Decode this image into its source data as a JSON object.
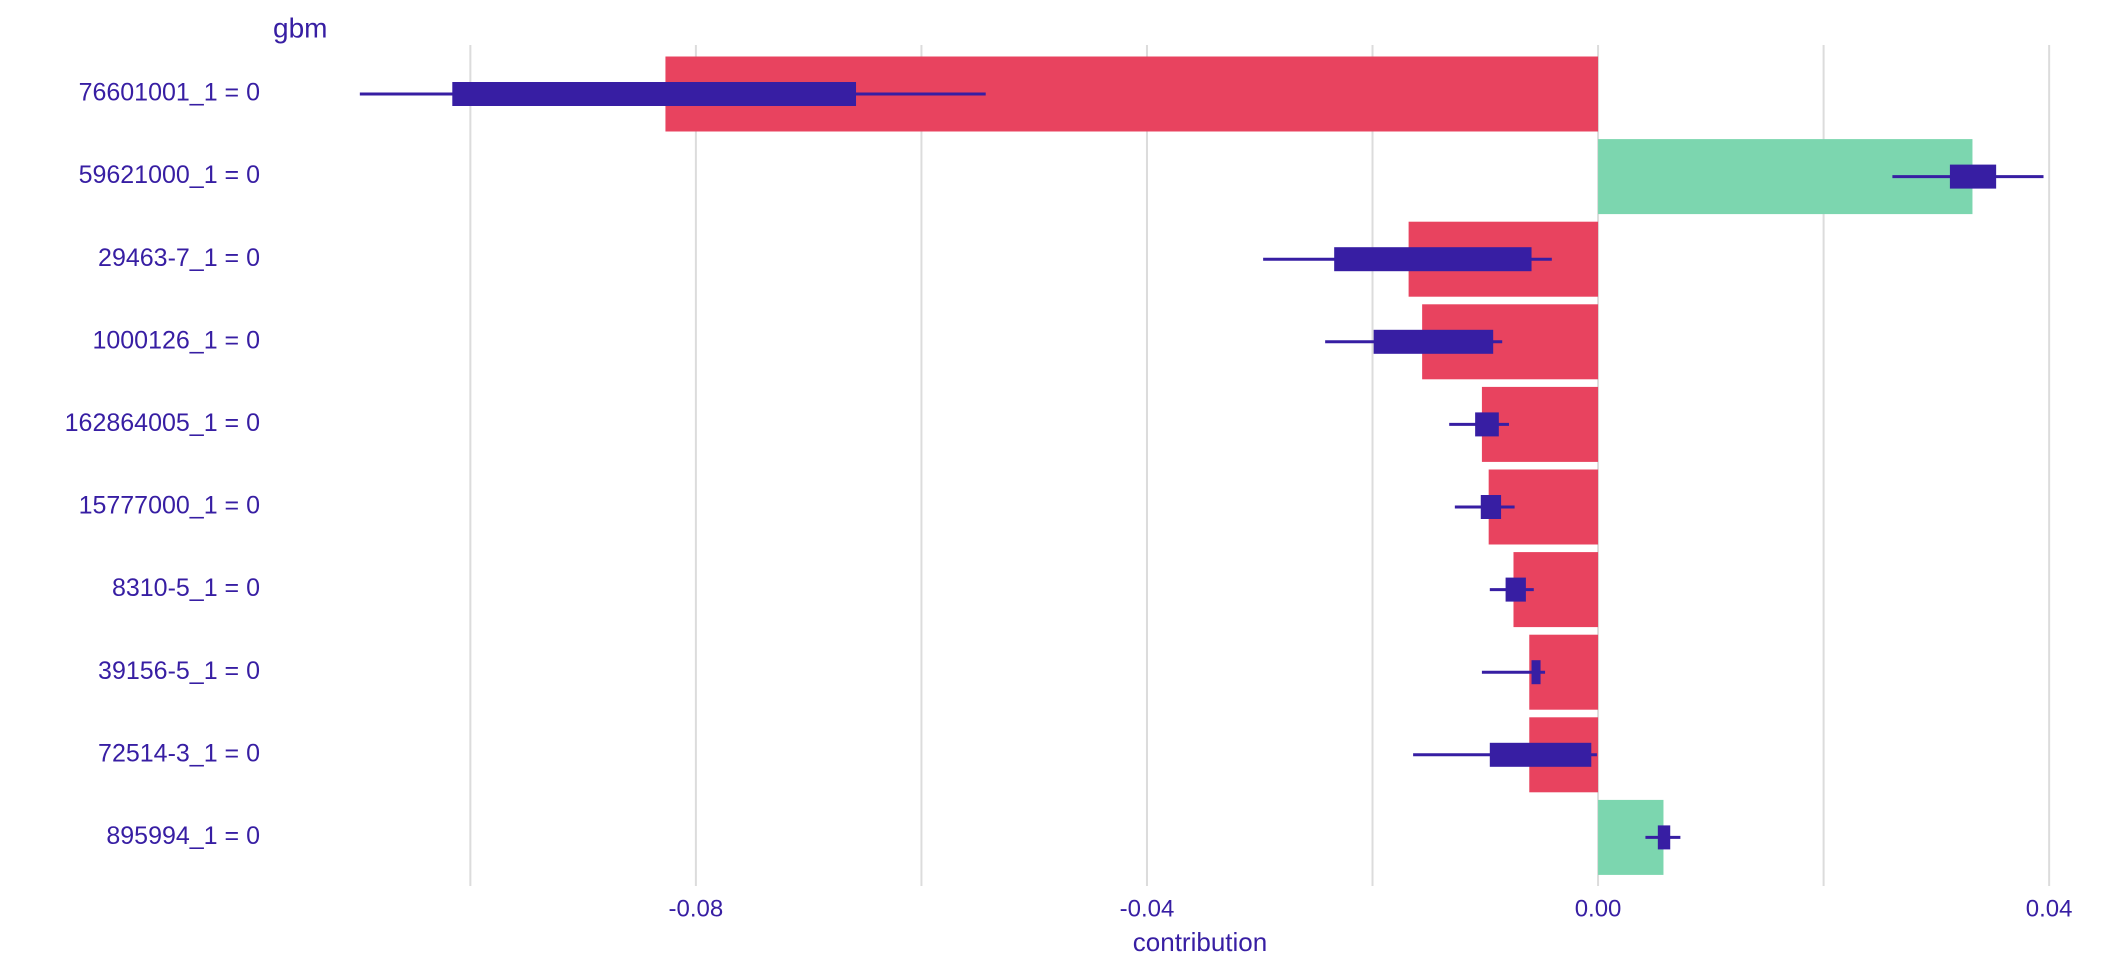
{
  "chart_data": {
    "type": "bar",
    "title": "gbm",
    "x_label": "contribution",
    "orientation": "horizontal",
    "categories": [
      "76601001_1 = 0",
      "59621000_1 = 0",
      "29463-7_1 = 0",
      "1000126_1 = 0",
      "162864005_1 = 0",
      "15777000_1 = 0",
      "8310-5_1 = 0",
      "39156-5_1 = 0",
      "72514-3_1 = 0",
      "895994_1 = 0"
    ],
    "values": [
      -0.0827,
      0.0332,
      -0.0168,
      -0.0156,
      -0.0103,
      -0.0097,
      -0.0075,
      -0.0061,
      -0.0061,
      0.0058
    ],
    "boxes": [
      {
        "min": -0.1098,
        "q1": -0.1016,
        "q3": -0.0658,
        "max": -0.0543
      },
      {
        "min": 0.0261,
        "q1": 0.0312,
        "q3": 0.0353,
        "max": 0.0395
      },
      {
        "min": -0.0297,
        "q1": -0.0234,
        "q3": -0.0059,
        "max": -0.0041
      },
      {
        "min": -0.0242,
        "q1": -0.0199,
        "q3": -0.0093,
        "max": -0.0085
      },
      {
        "min": -0.0132,
        "q1": -0.0109,
        "q3": -0.0088,
        "max": -0.0079
      },
      {
        "min": -0.0127,
        "q1": -0.0104,
        "q3": -0.0086,
        "max": -0.0074
      },
      {
        "min": -0.0096,
        "q1": -0.0082,
        "q3": -0.0064,
        "max": -0.0057
      },
      {
        "min": -0.0103,
        "q1": -0.0059,
        "q3": -0.0051,
        "max": -0.0047
      },
      {
        "min": -0.0164,
        "q1": -0.0096,
        "q3": -0.0006,
        "max": -0.0001
      },
      {
        "min": 0.0042,
        "q1": 0.0053,
        "q3": 0.0064,
        "max": 0.0073
      }
    ],
    "positive_color": "#7cd6af",
    "negative_color": "#e8435f",
    "box_color": "#371ea3",
    "xlim": [
      -0.1175,
      0.0438
    ],
    "xticks": [
      -0.08,
      -0.04,
      {
        "value": 0,
        "label": "0.00"
      },
      0.04
    ],
    "xminor": [
      -0.1,
      -0.06,
      -0.02,
      0.02
    ],
    "grid": true
  }
}
